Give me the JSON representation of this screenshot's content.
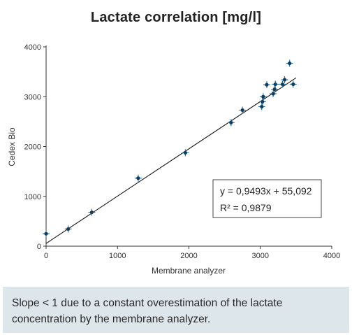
{
  "chart_data": {
    "type": "scatter",
    "title": "Lactate correlation [mg/l]",
    "xlabel": "Membrane analyzer",
    "ylabel": "Cedex Bio",
    "xlim": [
      0,
      4000
    ],
    "ylim": [
      0,
      4000
    ],
    "xticks": [
      "0",
      "1000",
      "2000",
      "3000",
      "4000"
    ],
    "yticks": [
      "0",
      "1000",
      "2000",
      "3000",
      "4000"
    ],
    "grid": false,
    "points": [
      {
        "x": 0,
        "y": 250
      },
      {
        "x": 310,
        "y": 345
      },
      {
        "x": 640,
        "y": 680
      },
      {
        "x": 1290,
        "y": 1365
      },
      {
        "x": 1950,
        "y": 1875
      },
      {
        "x": 2590,
        "y": 2480
      },
      {
        "x": 2750,
        "y": 2730
      },
      {
        "x": 3020,
        "y": 2800
      },
      {
        "x": 3030,
        "y": 2900
      },
      {
        "x": 3040,
        "y": 3000
      },
      {
        "x": 3090,
        "y": 3240
      },
      {
        "x": 3180,
        "y": 3060
      },
      {
        "x": 3200,
        "y": 3150
      },
      {
        "x": 3210,
        "y": 3250
      },
      {
        "x": 3310,
        "y": 3250
      },
      {
        "x": 3340,
        "y": 3340
      },
      {
        "x": 3410,
        "y": 3670
      },
      {
        "x": 3460,
        "y": 3250
      }
    ],
    "fit": {
      "slope": 0.9493,
      "intercept": 55.092,
      "x_range": [
        0,
        3500
      ],
      "equation_label": "y = 0,9493x + 55,092",
      "r2_label": "R² = 0,9879"
    },
    "colors": {
      "marker": "#2a7eb0",
      "marker_dark": "#123d5c",
      "line": "#1a1a1a",
      "axis": "#333333"
    }
  },
  "caption": {
    "line1": "Slope < 1 due to a constant overestimation of the lactate",
    "line2": "concentration by the membrane analyzer."
  }
}
